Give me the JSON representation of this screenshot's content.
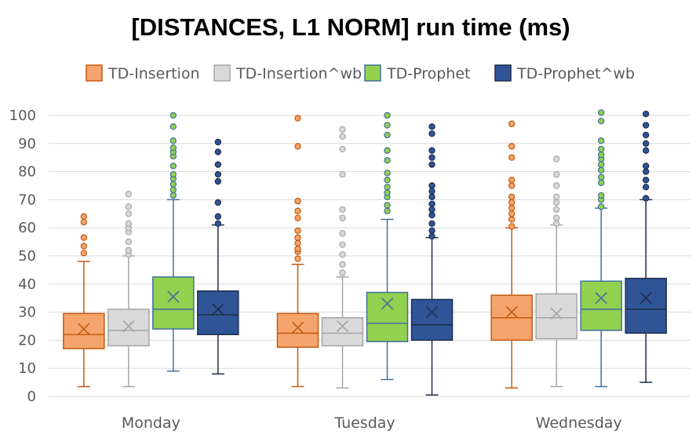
{
  "chart_data": {
    "type": "box",
    "title": "[DISTANCES, L1 NORM] run time (ms)",
    "xlabel": "",
    "ylabel": "",
    "ylim": [
      0,
      100
    ],
    "yticks": [
      0,
      10,
      20,
      30,
      40,
      50,
      60,
      70,
      80,
      90,
      100
    ],
    "ytick_labels": [
      "0",
      "10",
      "20",
      "30",
      "40",
      "50",
      "60",
      "70",
      "80",
      "90",
      "100"
    ],
    "grid": true,
    "legend_position": "top",
    "categories": [
      "Monday",
      "Tuesday",
      "Wednesday"
    ],
    "series": [
      {
        "name": "TD-Insertion",
        "fill": "#f4a46c",
        "stroke": "#c55a11",
        "boxes": [
          {
            "min": 3.5,
            "q1": 17,
            "median": 22,
            "q3": 29.5,
            "max": 48,
            "mean": 24,
            "outliers": [
              51,
              53.5,
              56.5,
              62,
              64
            ]
          },
          {
            "min": 3.5,
            "q1": 17.5,
            "median": 22.5,
            "q3": 29.5,
            "max": 47,
            "mean": 24.5,
            "outliers": [
              49,
              51.5,
              52.5,
              54.5,
              56.5,
              59,
              63.5,
              66,
              69.5,
              89,
              99
            ]
          },
          {
            "min": 3,
            "q1": 20,
            "median": 28,
            "q3": 36,
            "max": 60,
            "mean": 30,
            "outliers": [
              60.5,
              63,
              65,
              67,
              69,
              71,
              75,
              77,
              85,
              89,
              97
            ]
          }
        ]
      },
      {
        "name": "TD-Insertion^wb",
        "fill": "#d9d9d9",
        "stroke": "#a6a6a6",
        "boxes": [
          {
            "min": 3.5,
            "q1": 18,
            "median": 23.5,
            "q3": 31,
            "max": 50,
            "mean": 25,
            "outliers": [
              50.5,
              52,
              55,
              58.5,
              60,
              61.5,
              65,
              67.5,
              72
            ]
          },
          {
            "min": 3,
            "q1": 18,
            "median": 22.5,
            "q3": 28,
            "max": 42.5,
            "mean": 25,
            "outliers": [
              44,
              47,
              50.5,
              54,
              58,
              63.5,
              66.5,
              79,
              88,
              92.5,
              95
            ]
          },
          {
            "min": 3.5,
            "q1": 20.5,
            "median": 28,
            "q3": 36.5,
            "max": 61,
            "mean": 29.5,
            "outliers": [
              61.5,
              63.5,
              66.5,
              69,
              71,
              75,
              79,
              84.5
            ]
          }
        ]
      },
      {
        "name": "TD-Prophet",
        "fill": "#92d050",
        "stroke": "#41719c",
        "boxes": [
          {
            "min": 9,
            "q1": 24,
            "median": 31,
            "q3": 42.5,
            "max": 70,
            "mean": 35.5,
            "outliers": [
              71.5,
              73.5,
              75.5,
              77.5,
              79,
              82,
              85.5,
              87,
              88.5,
              91,
              96,
              100
            ]
          },
          {
            "min": 6,
            "q1": 19.5,
            "median": 26,
            "q3": 37,
            "max": 63,
            "mean": 33,
            "outliers": [
              66,
              68,
              71,
              72.5,
              74.5,
              77,
              79.5,
              84,
              87.5,
              93,
              96.5,
              100
            ]
          },
          {
            "min": 3.5,
            "q1": 23.5,
            "median": 31,
            "q3": 41,
            "max": 67,
            "mean": 35,
            "outliers": [
              67.5,
              70,
              71.5,
              76,
              78,
              80.5,
              82.5,
              84.5,
              86,
              88,
              91,
              98,
              101
            ]
          }
        ]
      },
      {
        "name": "TD-Prophet^wb",
        "fill": "#2f5597",
        "stroke": "#1f2d4a",
        "boxes": [
          {
            "min": 8,
            "q1": 22,
            "median": 29,
            "q3": 37.5,
            "max": 61,
            "mean": 31,
            "outliers": [
              61.5,
              64,
              69,
              76.5,
              79,
              82.5,
              87,
              90.5
            ]
          },
          {
            "min": 0.5,
            "q1": 20,
            "median": 25.5,
            "q3": 34.5,
            "max": 56.5,
            "mean": 30,
            "outliers": [
              57,
              59,
              61.5,
              64.5,
              66.5,
              68.5,
              71,
              73,
              75,
              82.5,
              85,
              87.5,
              93.5,
              96
            ]
          },
          {
            "min": 5,
            "q1": 22.5,
            "median": 31,
            "q3": 42,
            "max": 70,
            "mean": 35,
            "outliers": [
              70.5,
              74.5,
              77,
              80,
              82,
              87.5,
              90,
              93,
              96.5,
              100.5
            ]
          }
        ]
      }
    ]
  }
}
